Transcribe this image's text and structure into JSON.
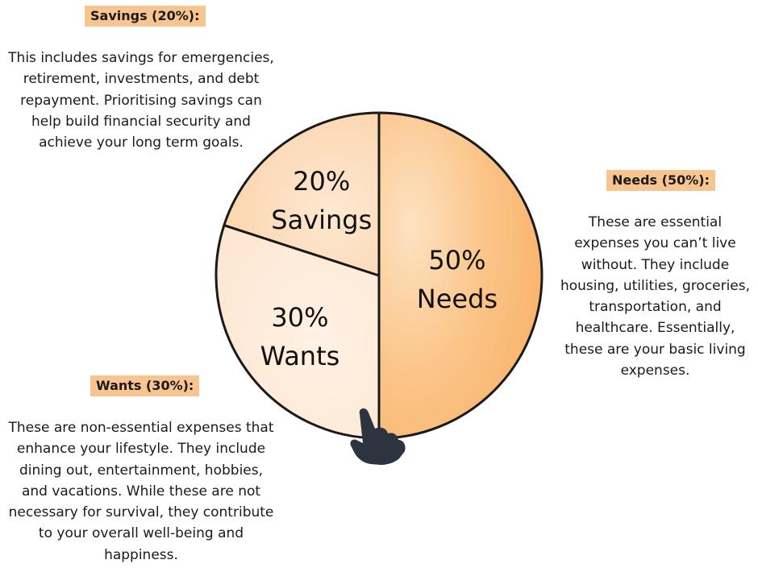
{
  "colors": {
    "needs_fill": "#f9b46c",
    "wants_fill": "#fde6d0",
    "savings_fill": "#fcd9b3",
    "heading_bg": "#f8c48f",
    "outline": "#1a1a1a",
    "hand": "#2c3440"
  },
  "icons": {
    "pointer": "hand-pointer-icon"
  },
  "sections": {
    "savings": {
      "heading": "Savings (20%):",
      "lines": [
        "This includes savings for emergencies,",
        "retirement, investments, and debt",
        "repayment. Prioritising savings can",
        "help build financial security and",
        "achieve your long term goals."
      ]
    },
    "needs": {
      "heading": "Needs (50%):",
      "lines": [
        "These are essential",
        "expenses you can’t live",
        "without. They include",
        "housing, utilities, groceries,",
        "transportation, and",
        "healthcare. Essentially,",
        "these are your basic living",
        "expenses."
      ]
    },
    "wants": {
      "heading": "Wants (30%):",
      "lines": [
        "These are non-essential expenses that",
        "enhance your lifestyle. They include",
        "dining out, entertainment, hobbies,",
        "and vacations. While these are not",
        "necessary for survival, they contribute",
        "to your overall well-being and",
        "happiness."
      ]
    }
  },
  "chart_data": {
    "type": "pie",
    "slices": [
      {
        "key": "needs",
        "value": 50,
        "pct_label": "50%",
        "name_label": "Needs"
      },
      {
        "key": "wants",
        "value": 30,
        "pct_label": "30%",
        "name_label": "Wants"
      },
      {
        "key": "savings",
        "value": 20,
        "pct_label": "20%",
        "name_label": "Savings"
      }
    ],
    "start": "top",
    "direction": "clockwise"
  }
}
